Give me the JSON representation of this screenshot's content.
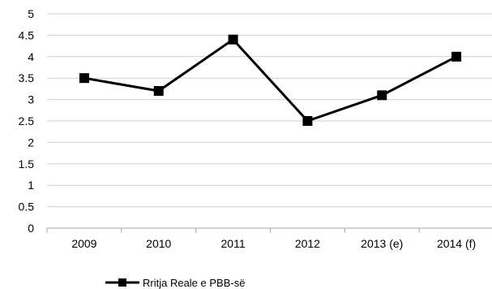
{
  "chart_data": {
    "type": "line",
    "title": "",
    "xlabel": "",
    "ylabel": "",
    "categories": [
      "2009",
      "2010",
      "2011",
      "2012",
      "2013 (e)",
      "2014 (f)"
    ],
    "series": [
      {
        "name": "Rritja Reale e PBB-së",
        "values": [
          3.5,
          3.2,
          4.4,
          2.5,
          3.1,
          4.0
        ],
        "color": "#000000",
        "marker": "square"
      }
    ],
    "ylim": [
      0,
      5
    ],
    "yticks": [
      "0",
      "0.5",
      "1",
      "1.5",
      "2",
      "2.5",
      "3",
      "3.5",
      "4",
      "4.5",
      "5"
    ],
    "grid": true,
    "gridColor": "#d0d0d0",
    "legend": "bottom-left"
  }
}
